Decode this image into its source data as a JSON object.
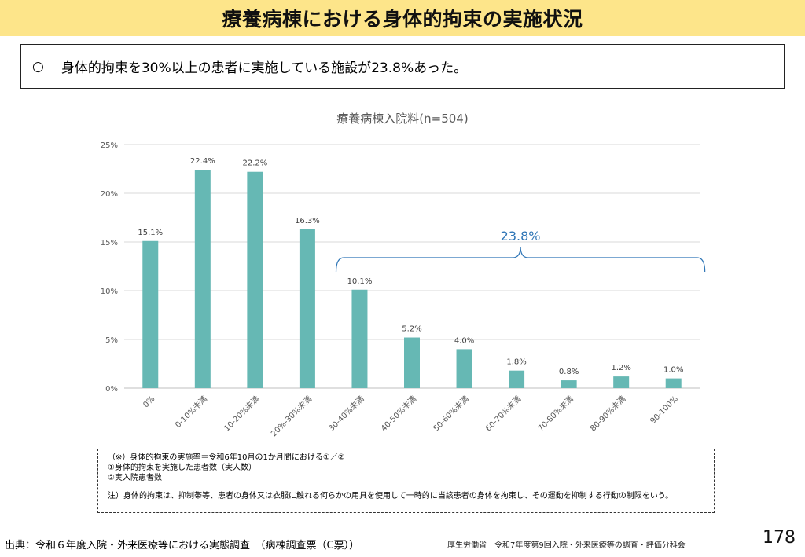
{
  "header": {
    "title": "療養病棟における身体的拘束の実施状況"
  },
  "summary": {
    "bullet": "○",
    "text": "身体的拘束を30%以上の患者に実施している施設が23.8%あった。"
  },
  "chart_data": {
    "type": "bar",
    "title": "療養病棟入院料(n=504)",
    "categories": [
      "0%",
      "0-10%未満",
      "10-20%未満",
      "20%-30%未満",
      "30-40%未満",
      "40-50%未満",
      "50-60%未満",
      "60-70%未満",
      "70-80%未満",
      "80-90%未満",
      "90-100%"
    ],
    "values": [
      15.1,
      22.4,
      22.2,
      16.3,
      10.1,
      5.2,
      4.0,
      1.8,
      0.8,
      1.2,
      1.0
    ],
    "value_labels": [
      "15.1%",
      "22.4%",
      "22.2%",
      "16.3%",
      "10.1%",
      "5.2%",
      "4.0%",
      "1.8%",
      "0.8%",
      "1.2%",
      "1.0%"
    ],
    "ylim": [
      0,
      25
    ],
    "yticks": [
      0,
      5,
      10,
      15,
      20,
      25
    ],
    "ytick_labels": [
      "0%",
      "5%",
      "10%",
      "15%",
      "20%",
      "25%"
    ],
    "grid": true,
    "bar_color": "#66b8b4",
    "annotation": {
      "text": "23.8%",
      "from_category": 4,
      "to_category": 10,
      "color": "#2e75b6"
    }
  },
  "notes": {
    "line1": "（※）身体的拘束の実施率＝令和6年10月の1か月間における①／②",
    "line2": "①身体的拘束を実施した患者数（実人数）",
    "line3": "②実入院患者数",
    "line4": "注）身体的拘束は、抑制帯等、患者の身体又は衣服に触れる何らかの用具を使用して一時的に当該患者の身体を拘束し、その運動を抑制する行動の制限をいう。"
  },
  "footer": {
    "source": "出典：令和６年度入院・外来医療等における実態調査　（病棟調査票（C票））",
    "org": "厚生労働省　令和7年度第9回入院・外来医療等の調査・評価分科会",
    "page": "178"
  }
}
